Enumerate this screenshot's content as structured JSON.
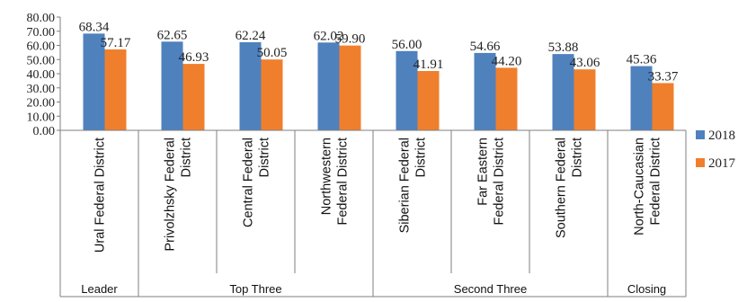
{
  "chart_data": {
    "type": "bar",
    "categories": [
      [
        "Ural Federal District"
      ],
      [
        "Privolzhsky Federal",
        "District"
      ],
      [
        "Central Federal",
        "District"
      ],
      [
        "Northwestern",
        "Federal District"
      ],
      [
        "Siberian Federal",
        "District"
      ],
      [
        "Far Eastern",
        "Federal District"
      ],
      [
        "Southern Federal",
        "District"
      ],
      [
        "North-Caucasian",
        "Federal District"
      ]
    ],
    "series": [
      {
        "name": "2018",
        "color": "#4f81bd",
        "values": [
          68.34,
          62.65,
          62.24,
          62.02,
          56.0,
          54.66,
          53.88,
          45.36
        ],
        "labels": [
          "68.34",
          "62.65",
          "62.24",
          "62.02",
          "56.00",
          "54.66",
          "53.88",
          "45.36"
        ]
      },
      {
        "name": "2017",
        "color": "#f07f2d",
        "values": [
          57.17,
          46.93,
          50.05,
          59.9,
          41.91,
          44.2,
          43.06,
          33.37
        ],
        "labels": [
          "57.17",
          "46.93",
          "50.05",
          "59.90",
          "41.91",
          "44.20",
          "43.06",
          "33.37"
        ]
      }
    ],
    "groups": [
      {
        "label": "Leader",
        "span": [
          0,
          0
        ]
      },
      {
        "label": "Top Three",
        "span": [
          1,
          3
        ]
      },
      {
        "label": "Second Three",
        "span": [
          4,
          6
        ]
      },
      {
        "label": "Closing",
        "span": [
          7,
          7
        ]
      }
    ],
    "yticks": [
      "0.00",
      "10.00",
      "20.00",
      "30.00",
      "40.00",
      "50.00",
      "60.00",
      "70.00",
      "80.00"
    ],
    "ylim": [
      0,
      80
    ],
    "grid": false,
    "legend_position": "right"
  }
}
